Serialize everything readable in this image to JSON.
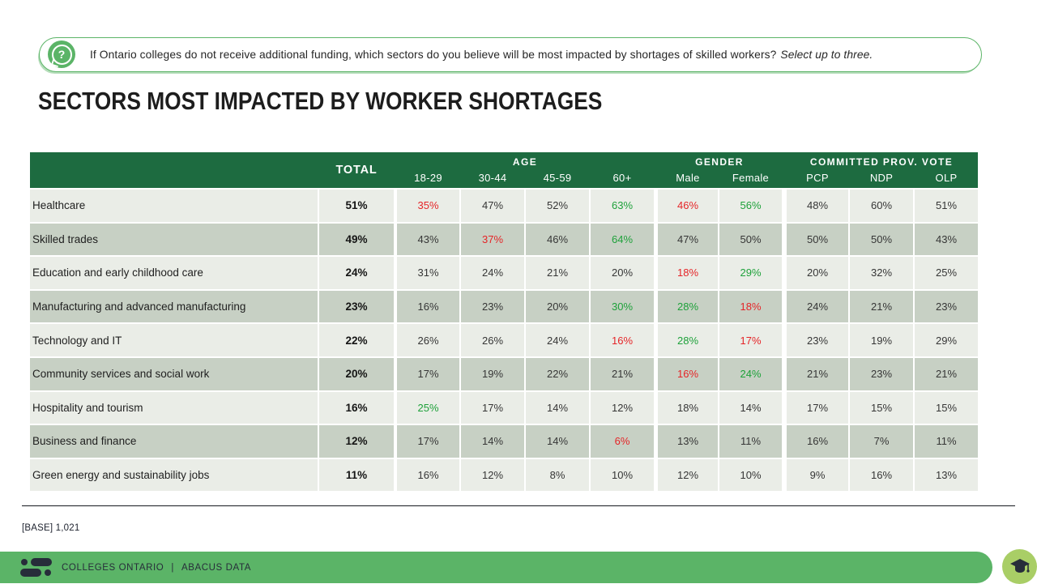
{
  "question": {
    "icon_glyph": "?",
    "text": "If Ontario colleges do not receive additional funding, which sectors do you believe will be most impacted by shortages of skilled workers?",
    "emphasis": "Select up to three."
  },
  "title": "SECTORS MOST IMPACTED BY WORKER SHORTAGES",
  "footnote": "[BASE] 1,021",
  "footer": {
    "brand": "COLLEGES ONTARIO",
    "separator": "|",
    "partner": "ABACUS DATA"
  },
  "colors": {
    "header_green": "#1d6b40",
    "accent_green": "#5bb467",
    "badge_green": "#a9ce66",
    "row_light": "#eaede7",
    "row_dark": "#c7d0c4",
    "value_red": "#e52528",
    "value_green": "#1ea13a",
    "logo_navy": "#272d3a"
  },
  "chart_data": {
    "type": "table",
    "title": "SECTORS MOST IMPACTED BY WORKER SHORTAGES",
    "total_label": "TOTAL",
    "groups": [
      {
        "label": "AGE",
        "span": 4
      },
      {
        "label": "GENDER",
        "span": 2
      },
      {
        "label": "COMMITTED PROV. VOTE",
        "span": 3
      }
    ],
    "columns": [
      "18-29",
      "30-44",
      "45-59",
      "60+",
      "Male",
      "Female",
      "PCP",
      "NDP",
      "OLP"
    ],
    "color_legend": {
      "red": "lower than total",
      "green": "higher than total"
    },
    "rows": [
      {
        "label": "Healthcare",
        "total": "51%",
        "values": [
          {
            "v": "35%",
            "c": "red"
          },
          {
            "v": "47%"
          },
          {
            "v": "52%"
          },
          {
            "v": "63%",
            "c": "green"
          },
          {
            "v": "46%",
            "c": "red"
          },
          {
            "v": "56%",
            "c": "green"
          },
          {
            "v": "48%"
          },
          {
            "v": "60%"
          },
          {
            "v": "51%"
          }
        ]
      },
      {
        "label": "Skilled trades",
        "total": "49%",
        "values": [
          {
            "v": "43%"
          },
          {
            "v": "37%",
            "c": "red"
          },
          {
            "v": "46%"
          },
          {
            "v": "64%",
            "c": "green"
          },
          {
            "v": "47%"
          },
          {
            "v": "50%"
          },
          {
            "v": "50%"
          },
          {
            "v": "50%"
          },
          {
            "v": "43%"
          }
        ]
      },
      {
        "label": "Education and early childhood care",
        "total": "24%",
        "values": [
          {
            "v": "31%"
          },
          {
            "v": "24%"
          },
          {
            "v": "21%"
          },
          {
            "v": "20%"
          },
          {
            "v": "18%",
            "c": "red"
          },
          {
            "v": "29%",
            "c": "green"
          },
          {
            "v": "20%"
          },
          {
            "v": "32%"
          },
          {
            "v": "25%"
          }
        ]
      },
      {
        "label": "Manufacturing and advanced manufacturing",
        "total": "23%",
        "values": [
          {
            "v": "16%"
          },
          {
            "v": "23%"
          },
          {
            "v": "20%"
          },
          {
            "v": "30%",
            "c": "green"
          },
          {
            "v": "28%",
            "c": "green"
          },
          {
            "v": "18%",
            "c": "red"
          },
          {
            "v": "24%"
          },
          {
            "v": "21%"
          },
          {
            "v": "23%"
          }
        ]
      },
      {
        "label": "Technology and IT",
        "total": "22%",
        "values": [
          {
            "v": "26%"
          },
          {
            "v": "26%"
          },
          {
            "v": "24%"
          },
          {
            "v": "16%",
            "c": "red"
          },
          {
            "v": "28%",
            "c": "green"
          },
          {
            "v": "17%",
            "c": "red"
          },
          {
            "v": "23%"
          },
          {
            "v": "19%"
          },
          {
            "v": "29%"
          }
        ]
      },
      {
        "label": "Community services and social work",
        "total": "20%",
        "values": [
          {
            "v": "17%"
          },
          {
            "v": "19%"
          },
          {
            "v": "22%"
          },
          {
            "v": "21%"
          },
          {
            "v": "16%",
            "c": "red"
          },
          {
            "v": "24%",
            "c": "green"
          },
          {
            "v": "21%"
          },
          {
            "v": "23%"
          },
          {
            "v": "21%"
          }
        ]
      },
      {
        "label": "Hospitality and tourism",
        "total": "16%",
        "values": [
          {
            "v": "25%",
            "c": "green"
          },
          {
            "v": "17%"
          },
          {
            "v": "14%"
          },
          {
            "v": "12%"
          },
          {
            "v": "18%"
          },
          {
            "v": "14%"
          },
          {
            "v": "17%"
          },
          {
            "v": "15%"
          },
          {
            "v": "15%"
          }
        ]
      },
      {
        "label": "Business and finance",
        "total": "12%",
        "values": [
          {
            "v": "17%"
          },
          {
            "v": "14%"
          },
          {
            "v": "14%"
          },
          {
            "v": "6%",
            "c": "red"
          },
          {
            "v": "13%"
          },
          {
            "v": "11%"
          },
          {
            "v": "16%"
          },
          {
            "v": "7%"
          },
          {
            "v": "11%"
          }
        ]
      },
      {
        "label": "Green energy and sustainability jobs",
        "total": "11%",
        "values": [
          {
            "v": "16%"
          },
          {
            "v": "12%"
          },
          {
            "v": "8%"
          },
          {
            "v": "10%"
          },
          {
            "v": "12%"
          },
          {
            "v": "10%"
          },
          {
            "v": "9%"
          },
          {
            "v": "16%"
          },
          {
            "v": "13%"
          }
        ]
      }
    ]
  }
}
